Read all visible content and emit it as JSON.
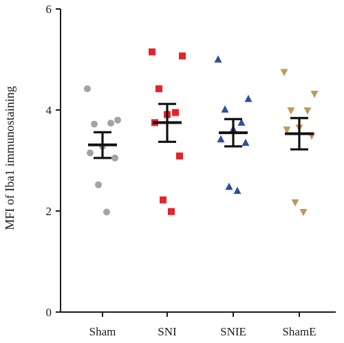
{
  "chart_data": {
    "type": "scatter",
    "ylabel": "MFI of Iba1 immunostaining",
    "xlabel": "",
    "ylim": [
      0,
      6
    ],
    "yticks": [
      0,
      2,
      4,
      6
    ],
    "categories": [
      "Sham",
      "SNI",
      "SNIE",
      "ShamE"
    ],
    "grid": false,
    "legend": "none",
    "series": [
      {
        "category": "Sham",
        "marker": "circle",
        "color": "#a3a3a3",
        "values": [
          4.42,
          3.8,
          3.72,
          3.74,
          3.28,
          3.15,
          3.05,
          2.52,
          1.98
        ],
        "mean": 3.31,
        "error": [
          3.05,
          3.56
        ]
      },
      {
        "category": "SNI",
        "marker": "square",
        "color": "#e8212a",
        "values": [
          5.15,
          5.07,
          4.42,
          3.95,
          3.91,
          3.75,
          3.09,
          2.22,
          1.99
        ],
        "mean": 3.75,
        "error": [
          3.37,
          4.12
        ]
      },
      {
        "category": "SNIE",
        "marker": "triangle-up",
        "color": "#2d4fa1",
        "values": [
          5.0,
          4.22,
          4.01,
          3.75,
          3.62,
          3.42,
          3.35,
          2.48,
          2.4
        ],
        "mean": 3.55,
        "error": [
          3.28,
          3.82
        ]
      },
      {
        "category": "ShamE",
        "marker": "triangle-down",
        "color": "#bf9a55",
        "values": [
          4.75,
          4.32,
          3.99,
          3.99,
          3.65,
          3.61,
          3.49,
          2.17,
          1.98
        ],
        "mean": 3.53,
        "error": [
          3.22,
          3.84
        ]
      }
    ]
  }
}
